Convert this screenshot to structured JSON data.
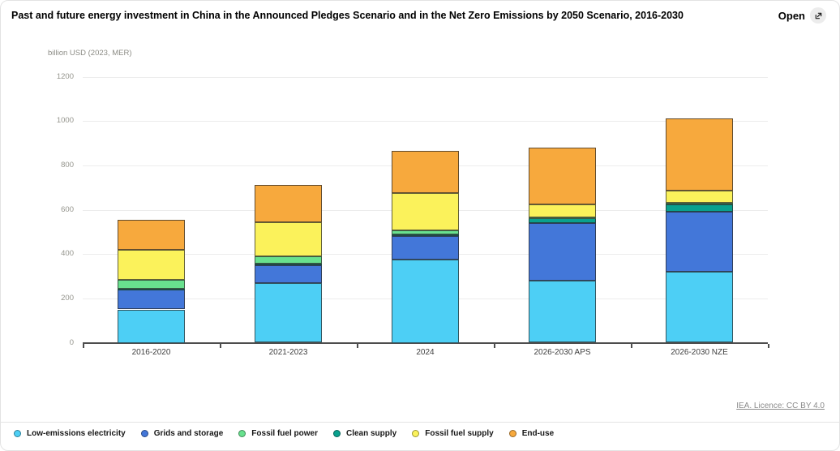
{
  "header": {
    "title": "Past and future energy investment in China in the Announced Pledges Scenario and in the Net Zero Emissions by 2050 Scenario, 2016-2030",
    "open_label": "Open"
  },
  "footer": {
    "license": "IEA. Licence: CC BY 4.0"
  },
  "chart_data": {
    "type": "bar",
    "stacked": true,
    "title": "Past and future energy investment in China in the Announced Pledges Scenario and in the Net Zero Emissions by 2050 Scenario, 2016-2030",
    "unit_label": "billion USD (2023, MER)",
    "categories": [
      "2016-2020",
      "2021-2023",
      "2024",
      "2026-2030 APS",
      "2026-2030 NZE"
    ],
    "series": [
      {
        "name": "Low-emissions electricity",
        "color": "#4DCFF5",
        "values": [
          150,
          270,
          375,
          280,
          320
        ]
      },
      {
        "name": "Grids and storage",
        "color": "#4377D9",
        "values": [
          90,
          80,
          105,
          260,
          270
        ]
      },
      {
        "name": "Fossil fuel power",
        "color": "#68E18E",
        "values": [
          40,
          35,
          15,
          5,
          5
        ]
      },
      {
        "name": "Clean supply",
        "color": "#0AA18E",
        "values": [
          5,
          5,
          10,
          20,
          35
        ]
      },
      {
        "name": "Fossil fuel supply",
        "color": "#FBF25B",
        "values": [
          135,
          155,
          170,
          60,
          55
        ]
      },
      {
        "name": "End-use",
        "color": "#F7A93D",
        "values": [
          135,
          165,
          190,
          255,
          325
        ]
      }
    ],
    "stack_order": [
      "Low-emissions electricity",
      "Grids and storage",
      "Clean supply",
      "Fossil fuel power",
      "Fossil fuel supply",
      "End-use"
    ],
    "ylim": [
      0,
      1200
    ],
    "yticks": [
      0,
      200,
      400,
      600,
      800,
      1000,
      1200
    ],
    "grid": "horizontal",
    "legend_position": "bottom"
  }
}
